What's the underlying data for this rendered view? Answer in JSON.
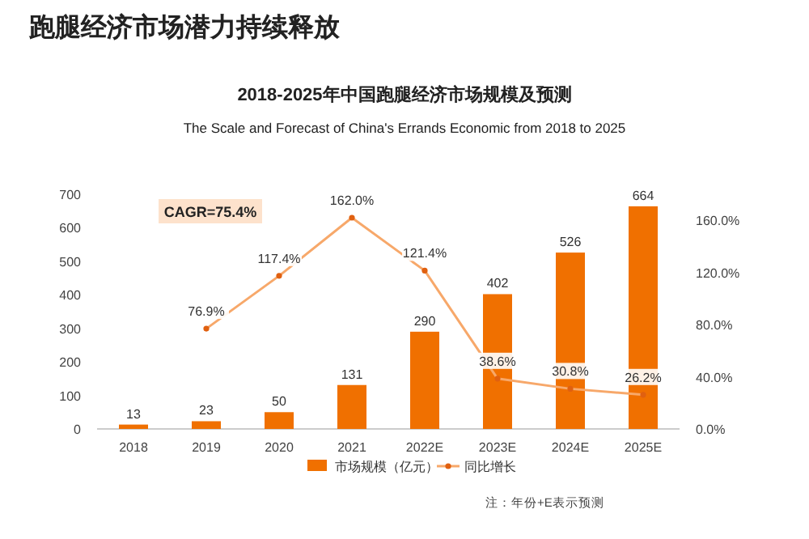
{
  "chart_data": {
    "type": "bar",
    "title": "2018-2025年中国跑腿经济市场规模及预测",
    "subtitle": "The Scale and Forecast of China's Errands Economic from 2018 to 2025",
    "annotations": [
      "跑腿经济市场潜力持续释放",
      "CAGR=75.4%",
      "注：年份+E表示预测"
    ],
    "categories": [
      "2018",
      "2019",
      "2020",
      "2021",
      "2022E",
      "2023E",
      "2024E",
      "2025E"
    ],
    "series": [
      {
        "name": "市场规模（亿元）",
        "color": "#f07000",
        "values": [
          13,
          23,
          50,
          131,
          290,
          402,
          526,
          664
        ],
        "value_labels": [
          "13",
          "23",
          "50",
          "131",
          "290",
          "402",
          "526",
          "664"
        ]
      },
      {
        "name": "同比增长",
        "type": "line",
        "axis": "y2",
        "color": "#f7a86a",
        "values": [
          null,
          76.9,
          117.4,
          162.0,
          121.4,
          38.6,
          30.8,
          26.2
        ],
        "value_labels": [
          null,
          "76.9%",
          "117.4%",
          "162.0%",
          "121.4%",
          "38.6%",
          "30.8%",
          "26.2%"
        ]
      }
    ],
    "ylim": [
      0,
      700
    ],
    "yticks": [
      0,
      100,
      200,
      300,
      400,
      500,
      600,
      700
    ],
    "y2lim": [
      0,
      180
    ],
    "y2ticks": [
      {
        "value": 0,
        "label": "0.0%"
      },
      {
        "value": 40,
        "label": "40.0%"
      },
      {
        "value": 80,
        "label": "80.0%"
      },
      {
        "value": 120,
        "label": "120.0%"
      },
      {
        "value": 160,
        "label": "160.0%"
      }
    ],
    "marker": "circle",
    "grid": false,
    "legend": "bottom"
  }
}
